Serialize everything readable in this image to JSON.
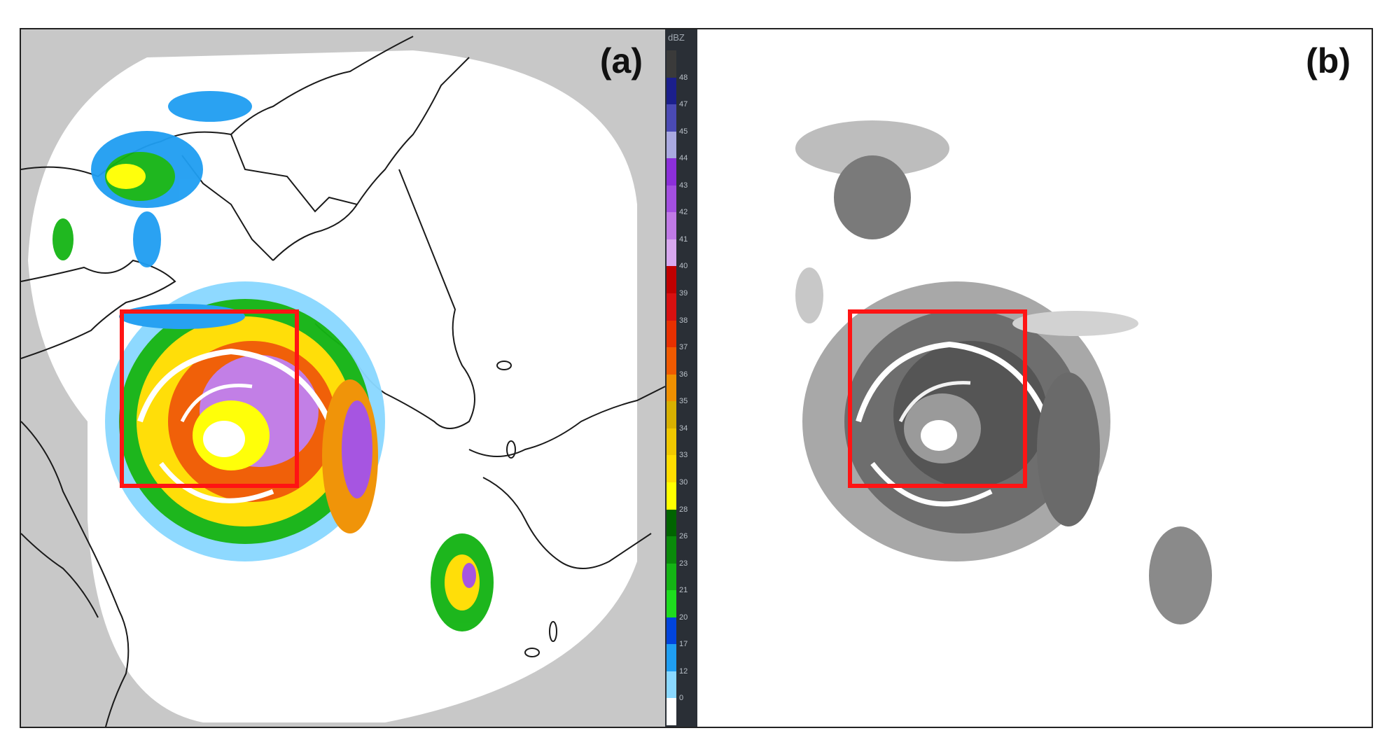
{
  "panels": [
    {
      "label": "(a)"
    },
    {
      "label": "(b)"
    }
  ],
  "colorbar": {
    "unit": "dBZ",
    "ticks": [
      "48",
      "47",
      "45",
      "44",
      "43",
      "42",
      "41",
      "40",
      "39",
      "38",
      "37",
      "36",
      "35",
      "34",
      "33",
      "30",
      "28",
      "26",
      "23",
      "21",
      "20",
      "17",
      "12",
      "0"
    ],
    "colors": [
      "#3a3a3a",
      "#1b1f8c",
      "#4a4ab4",
      "#a9a9e0",
      "#8c2fd9",
      "#a34fe0",
      "#c07ae6",
      "#d8a8ef",
      "#c00000",
      "#d81010",
      "#e83000",
      "#f05a00",
      "#f09000",
      "#d8b000",
      "#f0c800",
      "#ffdd00",
      "#ffff00",
      "#006400",
      "#0a8a0a",
      "#14b414",
      "#1edc1e",
      "#0044dd",
      "#1f9ef2",
      "#8ad8ff",
      "#ffffff"
    ]
  },
  "highlight_color": "#ff1414"
}
